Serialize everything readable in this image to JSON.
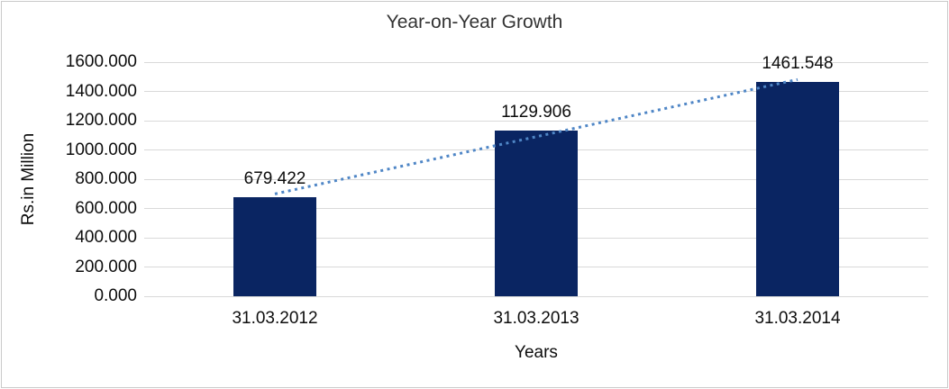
{
  "chart_data": {
    "type": "bar",
    "title": "Year-on-Year Growth",
    "xlabel": "Years",
    "ylabel": "Rs.in Million",
    "categories": [
      "31.03.2012",
      "31.03.2013",
      "31.03.2014"
    ],
    "values": [
      679.422,
      1129.906,
      1461.548
    ],
    "data_labels": [
      "679.422",
      "1129.906",
      "1461.548"
    ],
    "ylim": [
      0,
      1600
    ],
    "ytick_step": 200,
    "ytick_labels": [
      "0.000",
      "200.000",
      "400.000",
      "600.000",
      "800.000",
      "1000.000",
      "1200.000",
      "1400.000",
      "1600.000"
    ],
    "grid": true,
    "legend": "none",
    "trendline": {
      "type": "linear_regression",
      "style": "dotted"
    },
    "colors": {
      "bar": "#0a2562",
      "trendline": "#4f86c6",
      "gridline": "#d9d9d9",
      "axis_line": "#d9d9d9",
      "text": "#0d0d0d",
      "title": "#333333",
      "frame_border": "#c9c9c9",
      "background": "#ffffff"
    }
  }
}
